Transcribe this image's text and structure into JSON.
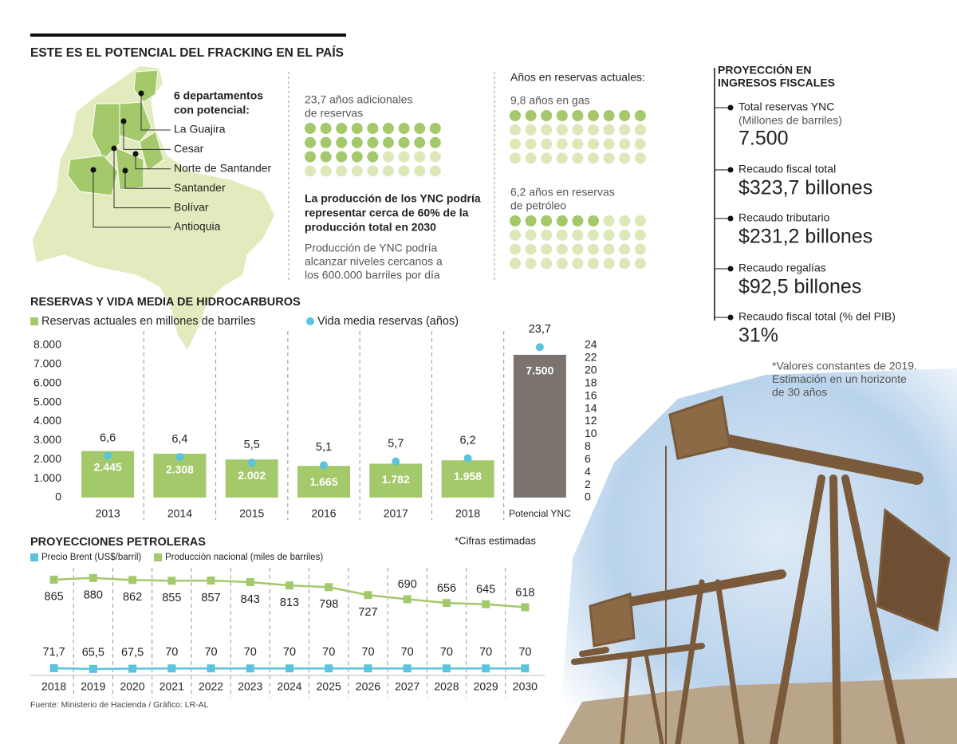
{
  "title": "ESTE ES EL POTENCIAL DEL FRACKING EN EL PAÍS",
  "map": {
    "heading": [
      "6 departamentos",
      "con potencial:"
    ],
    "departments": [
      "La Guajira",
      "Cesar",
      "Norte de Santander",
      "Santander",
      "Bolívar",
      "Antioquia"
    ]
  },
  "additional_reserves": {
    "label": [
      "23,7 años adicionales",
      "de reservas"
    ],
    "value": 23.7,
    "color": "#a3c96b",
    "empty_color": "#dde8b8"
  },
  "production_text": {
    "highlight": [
      "La producción de los YNC podría",
      "representar cerca de 60% de la",
      "producción total en 2030"
    ],
    "detail": [
      "Producción de YNC podría",
      "alcanzar niveles cercanos a",
      "los 600.000 barriles por día"
    ]
  },
  "current_reserves": {
    "heading": "Años en reservas actuales:",
    "gas": {
      "label": [
        "9,8 años en gas"
      ],
      "value": 9.8,
      "color": "#a3c96b",
      "empty_color": "#dde8b8"
    },
    "oil": {
      "label": [
        "6,2 años en reservas",
        "de petróleo"
      ],
      "value": 6.2,
      "color": "#a3c96b",
      "empty_color": "#dde8b8"
    }
  },
  "fiscal": {
    "heading": [
      "PROYECCIÓN EN",
      "INGRESOS FISCALES"
    ],
    "items": [
      {
        "label": "Total reservas YNC",
        "sub": "(Millones de barriles)",
        "value": "7.500"
      },
      {
        "label": "Recaudo fiscal total",
        "value": "$323,7 billones"
      },
      {
        "label": "Recaudo tributario",
        "value": "$231,2 billones"
      },
      {
        "label": "Recaudo regalías",
        "value": "$92,5 billones"
      },
      {
        "label": "Recaudo fiscal total (% del PIB)",
        "value": "31%"
      }
    ],
    "note": [
      "*Valores constantes de 2019.",
      "Estimación en un horizonte",
      "de 30 años"
    ]
  },
  "chart_data": [
    {
      "type": "bar",
      "title": "RESERVAS Y VIDA MEDIA DE HIDROCARBUROS",
      "categories": [
        "2013",
        "2014",
        "2015",
        "2016",
        "2017",
        "2018",
        "Potencial YNC"
      ],
      "series": [
        {
          "name": "Reservas actuales en millones de barriles",
          "color": "#a3c96b",
          "colors": [
            "#a3c96b",
            "#a3c96b",
            "#a3c96b",
            "#a3c96b",
            "#a3c96b",
            "#a3c96b",
            "#7a736e"
          ],
          "values": [
            2445,
            2308,
            2002,
            1665,
            1782,
            1958,
            7500
          ],
          "value_labels": [
            "2.445",
            "2.308",
            "2.002",
            "1.665",
            "1.782",
            "1.958",
            "7.500"
          ]
        },
        {
          "name": "Vida media reservas (años)",
          "color": "#5bc3dc",
          "axis": "y2",
          "values": [
            6.6,
            6.4,
            5.5,
            5.1,
            5.7,
            6.2,
            23.7
          ],
          "value_labels": [
            "6,6",
            "6,4",
            "5,5",
            "5,1",
            "5,7",
            "6,2",
            "23,7"
          ]
        }
      ],
      "ylim": [
        0,
        8000
      ],
      "yticks": [
        0,
        {
          "value": 1000,
          "label": "1.000"
        },
        {
          "value": 2000,
          "label": "2.000"
        },
        {
          "value": 3000,
          "label": "3.000"
        },
        {
          "value": 4000,
          "label": "4.000"
        },
        {
          "value": 5000,
          "label": "5.000"
        },
        {
          "value": 6000,
          "label": "6.000"
        },
        {
          "value": 7000,
          "label": "7.000"
        },
        {
          "value": 8000,
          "label": "8.000"
        }
      ],
      "y2lim": [
        0,
        24
      ],
      "y2ticks": [
        0,
        2,
        4,
        6,
        8,
        10,
        12,
        14,
        16,
        18,
        20,
        22,
        24
      ]
    },
    {
      "type": "line",
      "title": "PROYECCIONES PETROLERAS",
      "note": "*Cifras estimadas",
      "categories": [
        "2018",
        "2019",
        "2020",
        "2021",
        "2022",
        "2023",
        "2024",
        "2025",
        "2026",
        "2027",
        "2028",
        "2029",
        "2030"
      ],
      "series": [
        {
          "name": "Precio Brent (US$/barril)",
          "color": "#5bc3dc",
          "values": [
            71.7,
            65.5,
            67.5,
            70,
            70,
            70,
            70,
            70,
            70,
            70,
            70,
            70,
            70
          ],
          "value_labels": [
            "71,7",
            "65,5",
            "67,5",
            "70",
            "70",
            "70",
            "70",
            "70",
            "70",
            "70",
            "70",
            "70",
            "70"
          ]
        },
        {
          "name": "Producción nacional (miles de barriles)",
          "color": "#a3c96b",
          "values": [
            865,
            880,
            862,
            855,
            857,
            843,
            813,
            798,
            727,
            690,
            656,
            645,
            618
          ]
        }
      ],
      "ylim": [
        0,
        1000
      ]
    }
  ],
  "source": "Fuente: Ministerio de Hacienda / Gráfico: LR-AL"
}
